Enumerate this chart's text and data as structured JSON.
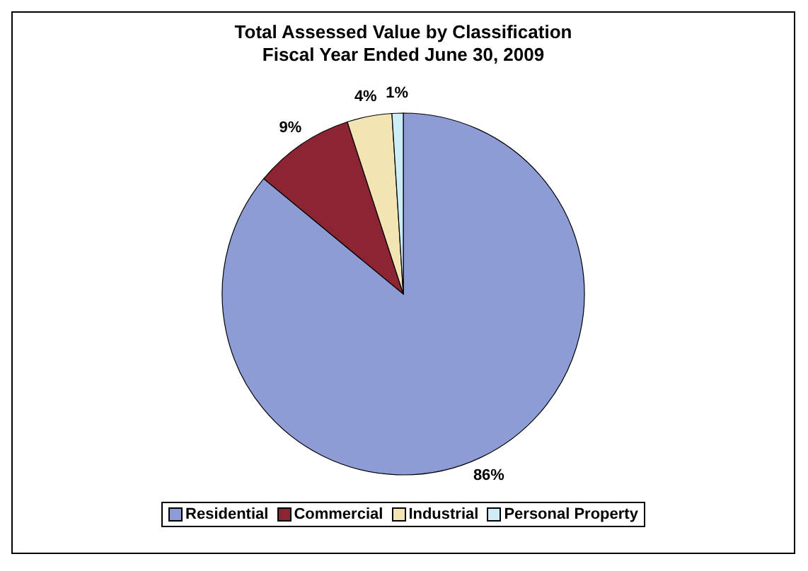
{
  "chart_data": {
    "type": "pie",
    "title": "Total Assessed Value by Classification\nFiscal Year Ended June 30, 2009",
    "categories": [
      "Residential",
      "Commercial",
      "Industrial",
      "Personal Property"
    ],
    "values": [
      86,
      9,
      4,
      1
    ],
    "colors": [
      "#8e9cd6",
      "#8c2434",
      "#f3e4b4",
      "#cdeef6"
    ],
    "value_labels": [
      "86%",
      "9%",
      "4%",
      "1%"
    ],
    "legend": "bottom"
  }
}
